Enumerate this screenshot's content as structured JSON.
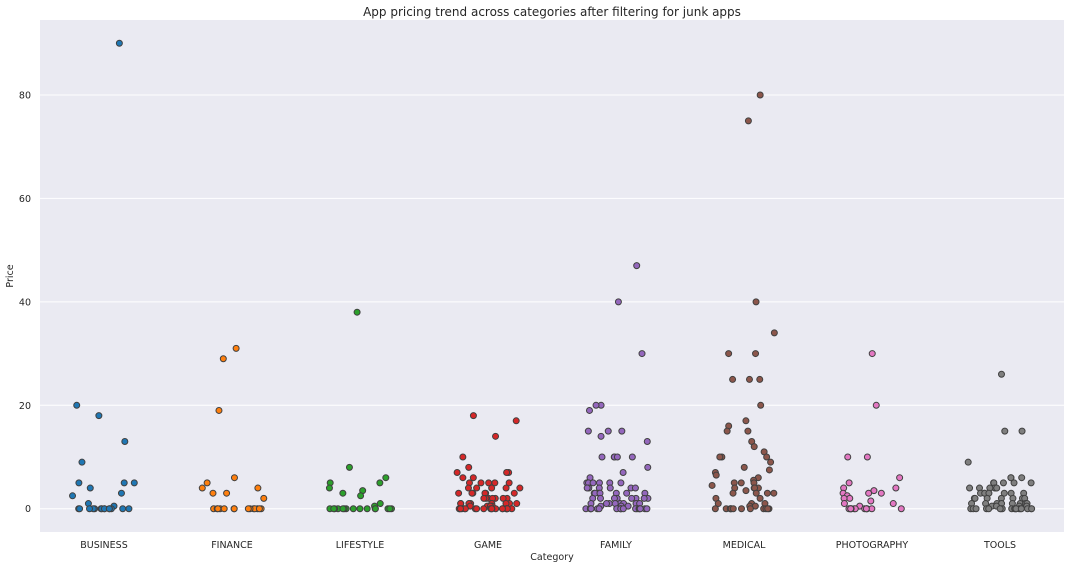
{
  "chart_data": {
    "type": "scatter",
    "subtype": "strip",
    "title": "App pricing trend across categories after filtering for junk apps",
    "xlabel": "Category",
    "ylabel": "Price",
    "ylim": [
      -4.5,
      94.5
    ],
    "yticks": [
      0,
      20,
      40,
      60,
      80
    ],
    "grid": "horizontal",
    "background": "#EAEAF2",
    "point_edge_color": "#404040",
    "categories": [
      "BUSINESS",
      "FINANCE",
      "LIFESTYLE",
      "GAME",
      "FAMILY",
      "MEDICAL",
      "PHOTOGRAPHY",
      "TOOLS"
    ],
    "series": [
      {
        "category": "BUSINESS",
        "color": "#1F77B4",
        "values": [
          90,
          20,
          18,
          13,
          9,
          5,
          5,
          5,
          4,
          3,
          2.5,
          1,
          0.5,
          0,
          0,
          0,
          0,
          0,
          0,
          0,
          0,
          0,
          0,
          0,
          0,
          0,
          0
        ]
      },
      {
        "category": "FINANCE",
        "color": "#FF7F0E",
        "values": [
          31,
          29,
          19,
          6,
          5,
          4,
          4,
          3,
          3,
          2,
          0,
          0,
          0,
          0,
          0,
          0,
          0,
          0,
          0,
          0,
          0,
          0,
          0,
          0
        ]
      },
      {
        "category": "LIFESTYLE",
        "color": "#2CA02C",
        "values": [
          38,
          8,
          6,
          5,
          5,
          4,
          3.5,
          3,
          2.5,
          1,
          0.5,
          0,
          0,
          0,
          0,
          0,
          0,
          0,
          0,
          0,
          0,
          0,
          0,
          0,
          0,
          0
        ]
      },
      {
        "category": "GAME",
        "color": "#D62728",
        "values": [
          18,
          17,
          14,
          10,
          8,
          7,
          7,
          7,
          6,
          6,
          5,
          5,
          5,
          5,
          5,
          4,
          4,
          4,
          4,
          4,
          3,
          3,
          3,
          3,
          3,
          3,
          2,
          2,
          2,
          2,
          2,
          2,
          2,
          1,
          1,
          1,
          1,
          1,
          1,
          1,
          1,
          0.5,
          0.5,
          0.5,
          0.5,
          0,
          0,
          0,
          0,
          0,
          0,
          0,
          0,
          0,
          0,
          0,
          0,
          0,
          0,
          0,
          0,
          0,
          0,
          0,
          0
        ]
      },
      {
        "category": "FAMILY",
        "color": "#9467BD",
        "values": [
          47,
          40,
          30,
          20,
          20,
          19,
          15,
          15,
          15,
          14,
          13,
          10,
          10,
          10,
          10,
          10,
          8,
          7,
          6,
          5,
          5,
          5,
          5,
          5,
          5,
          4,
          4,
          4,
          4,
          4,
          4,
          3,
          3,
          3,
          3,
          3,
          3,
          3,
          2,
          2,
          2,
          2,
          2,
          2,
          2,
          2,
          1,
          1,
          1,
          1,
          1,
          1,
          1,
          1,
          0.5,
          0.5,
          0.5,
          0,
          0,
          0,
          0,
          0,
          0,
          0,
          0,
          0,
          0,
          0,
          0,
          0,
          0,
          0,
          0,
          0,
          0
        ]
      },
      {
        "category": "MEDICAL",
        "color": "#8C564B",
        "values": [
          80,
          75,
          40,
          34,
          30,
          30,
          25,
          25,
          25,
          20,
          17,
          16,
          15,
          15,
          13,
          12,
          11,
          10,
          10,
          10,
          9,
          8,
          7.5,
          7,
          6.5,
          6,
          5.5,
          5,
          5,
          5,
          4.5,
          4,
          4,
          4,
          4,
          3.5,
          3,
          3,
          3,
          3,
          2,
          2,
          1,
          1,
          1,
          0.5,
          0.5,
          0,
          0,
          0,
          0,
          0,
          0,
          0,
          0,
          0,
          0,
          0,
          0
        ]
      },
      {
        "category": "PHOTOGRAPHY",
        "color": "#E377C2",
        "values": [
          30,
          20,
          10,
          10,
          6,
          5,
          4,
          4,
          3.5,
          3,
          3,
          3,
          2.5,
          2,
          2,
          1.5,
          1,
          1,
          0.5,
          0,
          0,
          0,
          0,
          0,
          0,
          0,
          0,
          0,
          0,
          0,
          0,
          0
        ]
      },
      {
        "category": "TOOLS",
        "color": "#7F7F7F",
        "values": [
          26,
          15,
          15,
          9,
          6,
          6,
          6,
          5,
          5,
          5,
          5,
          5,
          4,
          4,
          4,
          4,
          4,
          4,
          3,
          3,
          3,
          3,
          3,
          3,
          3,
          2,
          2,
          2,
          2,
          2,
          2,
          2,
          1,
          1,
          1,
          1,
          1,
          1,
          1,
          1,
          0.5,
          0.5,
          0.5,
          0.5,
          0,
          0,
          0,
          0,
          0,
          0,
          0,
          0,
          0,
          0,
          0,
          0,
          0,
          0,
          0,
          0,
          0,
          0
        ]
      }
    ]
  }
}
